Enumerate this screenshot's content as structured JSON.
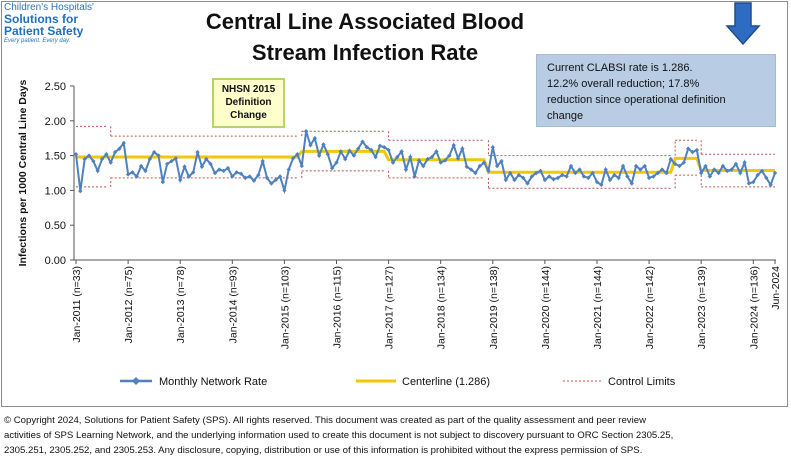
{
  "logo": {
    "line1": "Children's Hospitals'",
    "line2a": "Solutions for",
    "line2b": "Patient Safety",
    "tagline": "Every patient. Every day."
  },
  "title_line1": "Central Line Associated Blood",
  "title_line2": "Stream Infection Rate",
  "note": {
    "line1": "Current CLABSI  rate is 1.286.",
    "line2": "12.2% overall reduction; 17.8%",
    "line3": "reduction since operational definition",
    "line4": "change"
  },
  "callout": {
    "line1": "NHSN 2015",
    "line2": "Definition",
    "line3": "Change"
  },
  "legend": {
    "series": "Monthly Network Rate",
    "centerline": "Centerline (1.286)",
    "limits": "Control Limits"
  },
  "copyright": {
    "line1": "© Copyright 2024, Solutions for Patient Safety (SPS).  All rights reserved.  This document was created as part of the quality assessment and peer review",
    "line2": "activities of SPS Learning Network, and the underlying information used to create this document is not subject to discovery pursuant to ORC Section 2305.25,",
    "line3": "2305.251, 2305.252, and 2305.253. Any disclosure, copying, distribution or use of this information is prohibited without the express permission of SPS."
  },
  "colors": {
    "series": "#4f81bd",
    "centerline": "#f2c70a",
    "limits": "#c0504d",
    "note_bg": "#b8cce4",
    "arrow": "#2e6cc4",
    "callout_bg": "#ffffcc",
    "callout_border": "#b5d46a"
  },
  "icons": {
    "arrow": "down-arrow-icon"
  },
  "chart_data": {
    "type": "line",
    "ylabel": "Infections  per 1000 Central Line Days",
    "ylim": [
      0,
      2.5
    ],
    "yticks": [
      "0.00",
      "0.50",
      "1.00",
      "1.50",
      "2.00",
      "2.50"
    ],
    "x_start": "2011-01",
    "x_end": "2024-06",
    "grid": false,
    "legend_position": "bottom",
    "xtick_labels": [
      {
        "label": "Jan-2011 (n=33)",
        "month_index": 0
      },
      {
        "label": "Jan-2012 (n=75)",
        "month_index": 12
      },
      {
        "label": "Jan-2013 (n=78)",
        "month_index": 24
      },
      {
        "label": "Jan-2014 (n=93)",
        "month_index": 36
      },
      {
        "label": "Jan-2015 (n=103)",
        "month_index": 48
      },
      {
        "label": "Jan-2016 (n=115)",
        "month_index": 60
      },
      {
        "label": "Jan-2017 (n=127)",
        "month_index": 72
      },
      {
        "label": "Jan-2018 (n=134)",
        "month_index": 84
      },
      {
        "label": "Jan-2019 (n=138)",
        "month_index": 96
      },
      {
        "label": "Jan-2020 (n=144)",
        "month_index": 108
      },
      {
        "label": "Jan-2021 (n=144)",
        "month_index": 120
      },
      {
        "label": "Jan-2022 (n=142)",
        "month_index": 132
      },
      {
        "label": "Jan-2023 (n=139)",
        "month_index": 144
      },
      {
        "label": "Jan-2024 (n=136)",
        "month_index": 156
      },
      {
        "label": "Jun-2024",
        "month_index": 161
      }
    ],
    "series": [
      {
        "name": "Monthly Network Rate",
        "values": [
          1.52,
          0.99,
          1.45,
          1.5,
          1.42,
          1.28,
          1.45,
          1.52,
          1.4,
          1.55,
          1.6,
          1.68,
          1.23,
          1.26,
          1.2,
          1.35,
          1.28,
          1.45,
          1.55,
          1.5,
          1.12,
          1.38,
          1.42,
          1.46,
          1.15,
          1.34,
          1.2,
          1.26,
          1.55,
          1.34,
          1.45,
          1.38,
          1.25,
          1.3,
          1.28,
          1.32,
          1.2,
          1.26,
          1.24,
          1.18,
          1.2,
          1.14,
          1.22,
          1.42,
          1.18,
          1.1,
          1.15,
          1.2,
          1.0,
          1.3,
          1.46,
          1.52,
          1.35,
          1.85,
          1.65,
          1.75,
          1.5,
          1.66,
          1.52,
          1.32,
          1.4,
          1.56,
          1.45,
          1.57,
          1.5,
          1.6,
          1.7,
          1.62,
          1.58,
          1.48,
          1.64,
          1.62,
          1.58,
          1.4,
          1.48,
          1.56,
          1.3,
          1.48,
          1.2,
          1.43,
          1.35,
          1.45,
          1.48,
          1.56,
          1.4,
          1.43,
          1.5,
          1.65,
          1.46,
          1.6,
          1.34,
          1.3,
          1.25,
          1.35,
          1.4,
          1.28,
          1.62,
          1.35,
          1.42,
          1.15,
          1.25,
          1.15,
          1.22,
          1.18,
          1.1,
          1.2,
          1.25,
          1.28,
          1.15,
          1.2,
          1.16,
          1.18,
          1.22,
          1.2,
          1.35,
          1.25,
          1.3,
          1.2,
          1.18,
          1.25,
          1.12,
          1.08,
          1.3,
          1.15,
          1.22,
          1.18,
          1.35,
          1.2,
          1.1,
          1.35,
          1.3,
          1.35,
          1.18,
          1.2,
          1.25,
          1.3,
          1.25,
          1.45,
          1.38,
          1.35,
          1.4,
          1.6,
          1.55,
          1.58,
          1.25,
          1.35,
          1.2,
          1.3,
          1.25,
          1.35,
          1.28,
          1.3,
          1.38,
          1.25,
          1.4,
          1.1,
          1.12,
          1.22,
          1.28,
          1.18,
          1.08,
          1.25
        ]
      }
    ],
    "centerline_segments": [
      {
        "start": 0,
        "end": 51,
        "value": 1.48
      },
      {
        "start": 52,
        "end": 71,
        "value": 1.56
      },
      {
        "start": 72,
        "end": 94,
        "value": 1.44
      },
      {
        "start": 95,
        "end": 137,
        "value": 1.26
      },
      {
        "start": 138,
        "end": 143,
        "value": 1.46
      },
      {
        "start": 144,
        "end": 161,
        "value": 1.286
      }
    ],
    "control_limit_segments": [
      {
        "start": 0,
        "end": 7,
        "ucl": 1.92,
        "lcl": 1.05
      },
      {
        "start": 8,
        "end": 51,
        "ucl": 1.78,
        "lcl": 1.18
      },
      {
        "start": 52,
        "end": 71,
        "ucl": 1.85,
        "lcl": 1.28
      },
      {
        "start": 72,
        "end": 94,
        "ucl": 1.72,
        "lcl": 1.18
      },
      {
        "start": 95,
        "end": 137,
        "ucl": 1.5,
        "lcl": 1.03
      },
      {
        "start": 138,
        "end": 143,
        "ucl": 1.72,
        "lcl": 1.22
      },
      {
        "start": 144,
        "end": 161,
        "ucl": 1.52,
        "lcl": 1.05
      }
    ]
  }
}
